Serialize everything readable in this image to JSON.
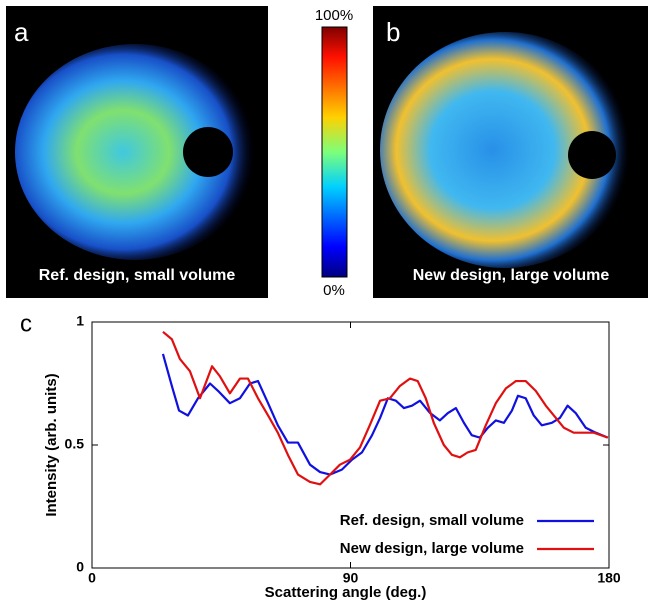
{
  "panels": [
    {
      "label": "a",
      "caption": "Ref. design, small volume"
    },
    {
      "label": "b",
      "caption": "New design, large volume"
    }
  ],
  "colorbar": {
    "max_label": "100%",
    "min_label": "0%"
  },
  "chart_label": "c",
  "chart_data": {
    "type": "line",
    "xlabel": "Scattering angle (deg.)",
    "ylabel": "Intensity (arb. units)",
    "xlim": [
      0,
      180
    ],
    "ylim": [
      0,
      1
    ],
    "xticks": [
      0,
      90,
      180
    ],
    "yticks": [
      0,
      0.5,
      1
    ],
    "legend": "lower right",
    "series": [
      {
        "name": "Ref. design, small volume",
        "color": "#1010e0",
        "x": [
          24.7,
          27.8,
          30.3,
          33.4,
          36.9,
          41.1,
          43.9,
          48.0,
          51.5,
          55.0,
          57.8,
          61.3,
          64.7,
          68.2,
          71.7,
          75.9,
          79.4,
          82.9,
          87.0,
          90.5,
          94.0,
          97.5,
          100.3,
          103.0,
          105.8,
          108.6,
          111.4,
          114.2,
          117.7,
          121.1,
          123.9,
          126.7,
          129.5,
          132.2,
          135.0,
          137.8,
          140.6,
          143.4,
          146.2,
          148.3,
          151.0,
          153.8,
          156.6,
          160.1,
          162.9,
          165.6,
          168.4,
          171.9,
          175.4,
          179.6
        ],
        "values": [
          0.87,
          0.74,
          0.64,
          0.62,
          0.69,
          0.75,
          0.72,
          0.67,
          0.69,
          0.75,
          0.76,
          0.67,
          0.58,
          0.51,
          0.51,
          0.42,
          0.39,
          0.38,
          0.4,
          0.44,
          0.47,
          0.54,
          0.61,
          0.69,
          0.68,
          0.65,
          0.66,
          0.68,
          0.63,
          0.6,
          0.63,
          0.65,
          0.59,
          0.54,
          0.53,
          0.57,
          0.6,
          0.59,
          0.64,
          0.7,
          0.69,
          0.62,
          0.58,
          0.59,
          0.61,
          0.66,
          0.63,
          0.57,
          0.55,
          0.53
        ]
      },
      {
        "name": "New design, large volume",
        "color": "#e01010",
        "x": [
          24.7,
          27.8,
          30.6,
          34.1,
          37.6,
          41.8,
          44.5,
          48.0,
          51.5,
          54.3,
          57.8,
          61.3,
          64.7,
          68.2,
          71.7,
          75.9,
          79.4,
          82.9,
          86.3,
          89.8,
          93.3,
          96.7,
          100.3,
          103.7,
          107.2,
          110.7,
          113.4,
          116.2,
          119.0,
          122.5,
          125.3,
          128.1,
          130.8,
          133.6,
          137.1,
          140.6,
          144.1,
          147.6,
          151.0,
          154.5,
          158.0,
          161.5,
          164.3,
          167.7,
          171.2,
          174.7,
          179.6
        ],
        "values": [
          0.96,
          0.93,
          0.85,
          0.8,
          0.69,
          0.82,
          0.78,
          0.71,
          0.77,
          0.77,
          0.69,
          0.62,
          0.55,
          0.46,
          0.38,
          0.35,
          0.34,
          0.38,
          0.42,
          0.44,
          0.49,
          0.58,
          0.68,
          0.69,
          0.74,
          0.77,
          0.76,
          0.69,
          0.59,
          0.5,
          0.46,
          0.45,
          0.47,
          0.48,
          0.58,
          0.67,
          0.73,
          0.76,
          0.76,
          0.72,
          0.66,
          0.61,
          0.57,
          0.55,
          0.55,
          0.55,
          0.53
        ]
      }
    ]
  }
}
